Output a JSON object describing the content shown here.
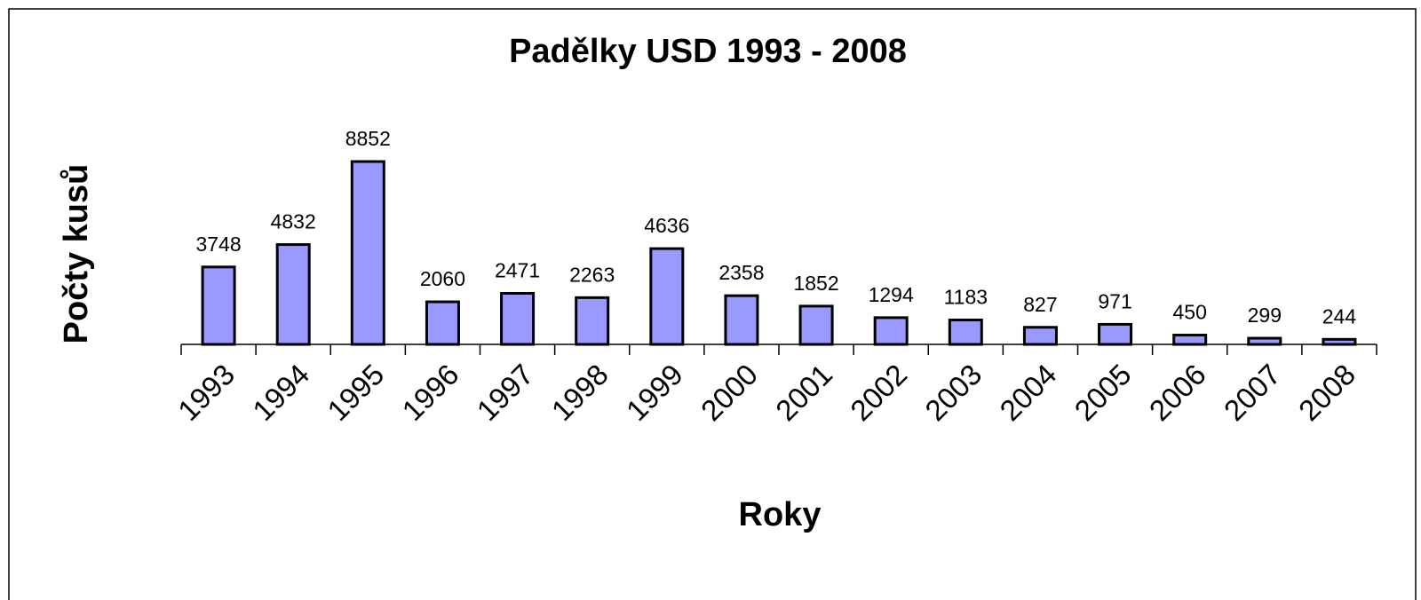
{
  "chart_data": {
    "type": "bar",
    "title": "Padělky USD 1993 - 2008",
    "x_label": "Roky",
    "y_label": "Počty kusů",
    "categories": [
      "1993",
      "1994",
      "1995",
      "1996",
      "1997",
      "1998",
      "1999",
      "2000",
      "2001",
      "2002",
      "2003",
      "2004",
      "2005",
      "2006",
      "2007",
      "2008"
    ],
    "values": [
      3748,
      4832,
      8852,
      2060,
      2471,
      2263,
      4636,
      2358,
      1852,
      1294,
      1183,
      827,
      971,
      450,
      299,
      244
    ],
    "color": "#9999ff"
  }
}
